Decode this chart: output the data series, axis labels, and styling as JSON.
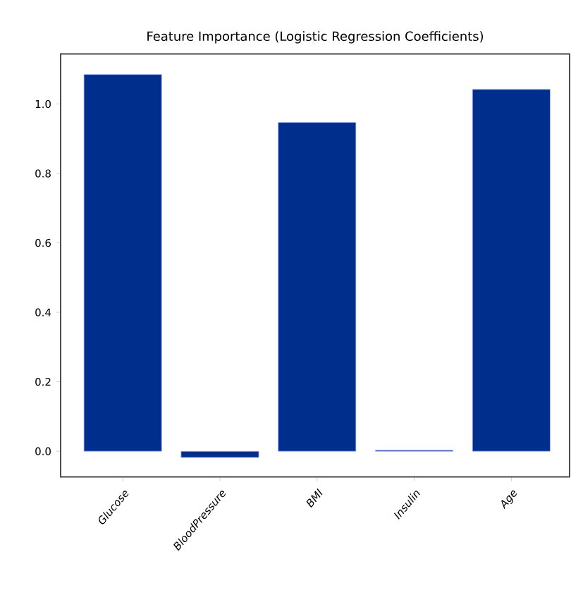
{
  "chart_data": {
    "type": "bar",
    "title": "Feature Importance (Logistic Regression Coefficients)",
    "categories": [
      "Glucose",
      "BloodPressure",
      "BMI",
      "Insulin",
      "Age"
    ],
    "values": [
      1.085,
      -0.018,
      0.947,
      0.003,
      1.042
    ],
    "color": "#002e8c",
    "ylim": [
      -0.074,
      1.144
    ],
    "yticks": [
      {
        "value": 0,
        "label": "0.0"
      },
      0.2,
      0.4,
      0.6,
      0.8,
      {
        "value": 1,
        "label": "1.0"
      }
    ],
    "grid": false
  }
}
